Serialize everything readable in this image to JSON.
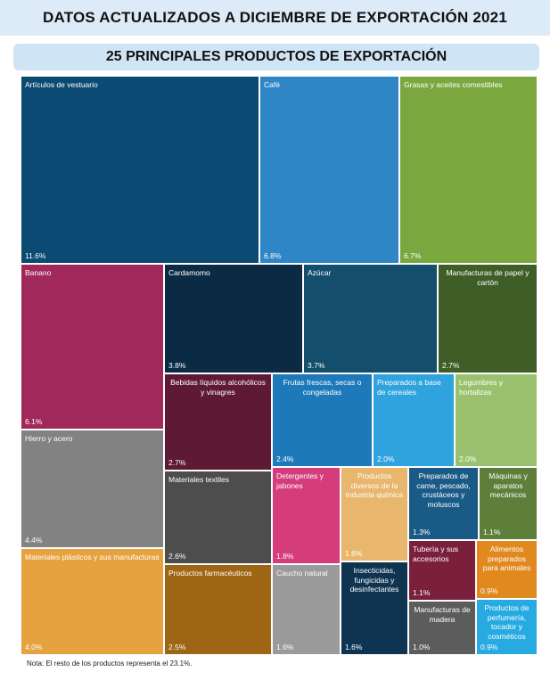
{
  "header": {
    "title": "DATOS ACTUALIZADOS A DICIEMBRE DE EXPORTACIÓN 2021",
    "subtitle": "25 PRINCIPALES PRODUCTOS DE EXPORTACIÓN"
  },
  "footer": {
    "note": "Nota: El resto de los productos representa el 23.1%."
  },
  "chart_data": {
    "type": "treemap",
    "title": "25 PRINCIPALES PRODUCTOS DE EXPORTACIÓN",
    "unit": "%",
    "items": [
      {
        "name": "Artículos de vestuario",
        "value": 11.6,
        "label": "11.6%",
        "color": "#0b4a72"
      },
      {
        "name": "Café",
        "value": 6.8,
        "label": "6.8%",
        "color": "#2e86c6"
      },
      {
        "name": "Grasas y aceites comestibles",
        "value": 6.7,
        "label": "6.7%",
        "color": "#7aa83f"
      },
      {
        "name": "Banano",
        "value": 6.1,
        "label": "6.1%",
        "color": "#a0285a"
      },
      {
        "name": "Cardamomo",
        "value": 3.8,
        "label": "3.8%",
        "color": "#0b2b45"
      },
      {
        "name": "Azúcar",
        "value": 3.7,
        "label": "3.7%",
        "color": "#134e6c"
      },
      {
        "name": "Manufacturas de papel y cartón",
        "value": 2.7,
        "label": "2.7%",
        "color": "#3f5e27"
      },
      {
        "name": "Hierro y acero",
        "value": 4.4,
        "label": "4.4%",
        "color": "#828282"
      },
      {
        "name": "Bebidas líquidos alcohólicos y vinagres",
        "value": 2.7,
        "label": "2.7%",
        "color": "#5e1a35"
      },
      {
        "name": "Frutas frescas, secas o congeladas",
        "value": 2.4,
        "label": "2.4%",
        "color": "#1d79b9"
      },
      {
        "name": "Preparados a base de cereales",
        "value": 2.0,
        "label": "2.0%",
        "color": "#2ea3dd"
      },
      {
        "name": "Legumbres y hortalizas",
        "value": 2.0,
        "label": "2.0%",
        "color": "#9ac26e"
      },
      {
        "name": "Materiales textiles",
        "value": 2.6,
        "label": "2.6%",
        "color": "#4d4d4d"
      },
      {
        "name": "Detergentes y jabones",
        "value": 1.8,
        "label": "1.8%",
        "color": "#d53c7c"
      },
      {
        "name": "Productos diversos de la industria química",
        "value": 1.6,
        "label": "1.6%",
        "color": "#e8b66c"
      },
      {
        "name": "Preparados de carne, pescado, crustáceos y moluscos",
        "value": 1.3,
        "label": "1.3%",
        "color": "#1a5a87"
      },
      {
        "name": "Máquinas y aparatos mecánicos",
        "value": 1.1,
        "label": "1.1%",
        "color": "#5d7f3a"
      },
      {
        "name": "Materiales plásticos y sus manufacturas",
        "value": 4.0,
        "label": "4.0%",
        "color": "#e6a23e"
      },
      {
        "name": "Productos farmacéuticos",
        "value": 2.5,
        "label": "2.5%",
        "color": "#9e6514"
      },
      {
        "name": "Caucho natural",
        "value": 1.6,
        "label": "1.6%",
        "color": "#9a9a9a"
      },
      {
        "name": "Insecticidas, fungicidas y desinfectantes",
        "value": 1.6,
        "label": "1.6%",
        "color": "#0f3452"
      },
      {
        "name": "Tubería y sus accesorios",
        "value": 1.1,
        "label": "1.1%",
        "color": "#7a1f3c"
      },
      {
        "name": "Alimentos preparados para animales",
        "value": 0.9,
        "label": "0.9%",
        "color": "#e0891f"
      },
      {
        "name": "Manufacturas de madera",
        "value": 1.0,
        "label": "1.0%",
        "color": "#5c5c5c"
      },
      {
        "name": "Productos de perfumería, tocador y cosméticos",
        "value": 0.9,
        "label": "0.9%",
        "color": "#27aae1"
      }
    ]
  }
}
